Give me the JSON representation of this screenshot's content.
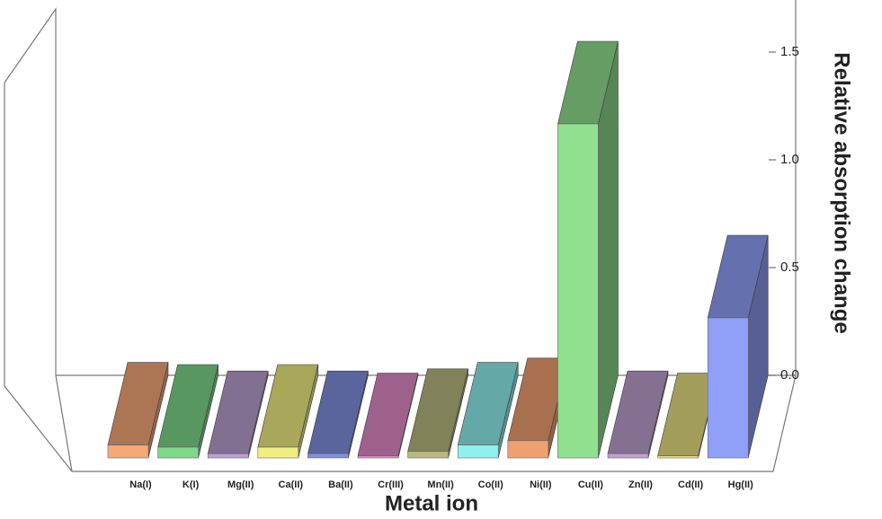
{
  "chart_data": {
    "type": "bar3d",
    "x_label": "Metal ion",
    "y_label": "Relative absorption change",
    "categories": [
      "Na(I)",
      "K(I)",
      "Mg(II)",
      "Ca(II)",
      "Ba(II)",
      "Cr(III)",
      "Mn(II)",
      "Co(II)",
      "Ni(II)",
      "Cu(II)",
      "Zn(II)",
      "Cd(II)",
      "Hg(II)"
    ],
    "values": [
      0.06,
      0.05,
      0.02,
      0.05,
      0.02,
      0.01,
      0.03,
      0.06,
      0.08,
      1.55,
      0.02,
      0.01,
      0.65
    ],
    "colors": [
      "#f5a97a",
      "#7fd88a",
      "#b9a0d0",
      "#f0ee80",
      "#8090e0",
      "#e08ac8",
      "#b8b880",
      "#90f0f0",
      "#f0a070",
      "#90e090",
      "#c0a0d0",
      "#e8e080",
      "#90a0f8"
    ],
    "ylim": [
      0,
      1.7
    ],
    "yticks": [
      {
        "value": 0,
        "label": "0.0"
      },
      {
        "value": 0.5,
        "label": "0.5"
      },
      {
        "value": 1,
        "label": "1.0"
      },
      {
        "value": 1.5,
        "label": "1.5"
      }
    ]
  }
}
